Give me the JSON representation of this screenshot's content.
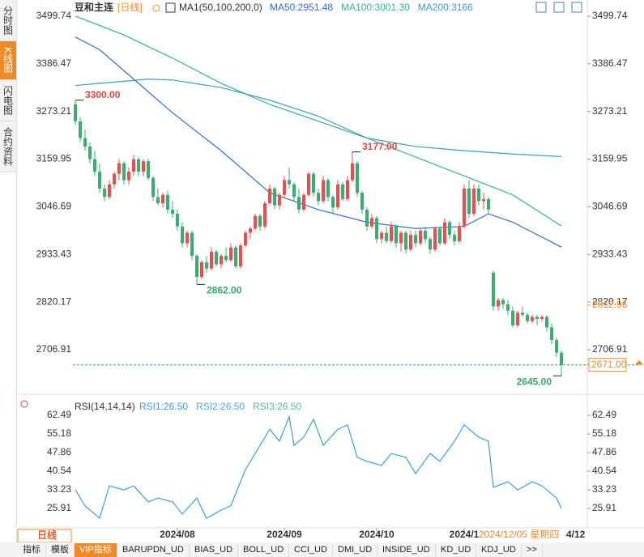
{
  "ui": {
    "tabs_left": [
      "分时图",
      "K线图",
      "闪电图",
      "合约资料"
    ],
    "symbol": "豆和主连",
    "period": "[日线]",
    "period_button": "日线",
    "crosshair_date": "2024/12/05 星期四",
    "crosshair_tail": "4/12",
    "bottom_tabs": [
      "指标",
      "模板",
      "VIP指标",
      "BARUPDN_UD",
      "BIAS_UD",
      "BOLL_UD",
      "CCI_UD",
      "DMI_UD",
      "INSIDE_UD",
      "KD_UD",
      "KDJ_UD",
      ">>"
    ]
  },
  "chart_data": [
    {
      "type": "candlestick",
      "title": "MA1(50,100,200,0)",
      "up_color": "#ef4b4b",
      "down_color": "#35b06e",
      "ylim": [
        2605,
        3515
      ],
      "yticks": [
        3499.74,
        3386.47,
        3273.21,
        3159.95,
        3046.69,
        2933.43,
        2820.17,
        2706.91
      ],
      "xlim": [
        0,
        100
      ],
      "xticks": [
        {
          "value": 21,
          "label": "2024/08"
        },
        {
          "value": 43,
          "label": "2024/09"
        },
        {
          "value": 62,
          "label": "2024/10"
        },
        {
          "value": 80,
          "label": "2024/1"
        }
      ],
      "ohlc": [
        [
          3290,
          3300,
          3240,
          3250
        ],
        [
          3250,
          3260,
          3200,
          3210
        ],
        [
          3210,
          3230,
          3180,
          3190
        ],
        [
          3190,
          3200,
          3150,
          3160
        ],
        [
          3160,
          3180,
          3120,
          3130
        ],
        [
          3130,
          3150,
          3080,
          3090
        ],
        [
          3090,
          3100,
          3060,
          3070
        ],
        [
          3070,
          3110,
          3065,
          3100
        ],
        [
          3100,
          3130,
          3090,
          3125
        ],
        [
          3125,
          3160,
          3110,
          3150
        ],
        [
          3150,
          3155,
          3100,
          3110
        ],
        [
          3110,
          3140,
          3100,
          3130
        ],
        [
          3130,
          3170,
          3120,
          3160
        ],
        [
          3160,
          3165,
          3120,
          3130
        ],
        [
          3130,
          3160,
          3120,
          3155
        ],
        [
          3155,
          3160,
          3110,
          3115
        ],
        [
          3115,
          3120,
          3060,
          3070
        ],
        [
          3070,
          3090,
          3050,
          3055
        ],
        [
          3055,
          3080,
          3045,
          3075
        ],
        [
          3075,
          3085,
          3030,
          3040
        ],
        [
          3040,
          3060,
          3020,
          3030
        ],
        [
          3030,
          3040,
          2990,
          3000
        ],
        [
          3000,
          3010,
          2950,
          2960
        ],
        [
          2960,
          2990,
          2950,
          2985
        ],
        [
          2985,
          2990,
          2920,
          2930
        ],
        [
          2930,
          2935,
          2862,
          2880
        ],
        [
          2880,
          2920,
          2875,
          2915
        ],
        [
          2915,
          2930,
          2890,
          2900
        ],
        [
          2900,
          2950,
          2895,
          2940
        ],
        [
          2940,
          2945,
          2905,
          2910
        ],
        [
          2910,
          2935,
          2900,
          2930
        ],
        [
          2930,
          2950,
          2915,
          2920
        ],
        [
          2920,
          2960,
          2915,
          2950
        ],
        [
          2950,
          2955,
          2900,
          2905
        ],
        [
          2905,
          2960,
          2900,
          2955
        ],
        [
          2955,
          2990,
          2950,
          2985
        ],
        [
          2985,
          3000,
          2970,
          2995
        ],
        [
          2995,
          3030,
          2990,
          3025
        ],
        [
          3025,
          3030,
          2990,
          3000
        ],
        [
          3000,
          3060,
          2995,
          3055
        ],
        [
          3055,
          3100,
          3050,
          3090
        ],
        [
          3090,
          3095,
          3040,
          3050
        ],
        [
          3050,
          3080,
          3040,
          3075
        ],
        [
          3075,
          3120,
          3070,
          3110
        ],
        [
          3110,
          3140,
          3090,
          3100
        ],
        [
          3100,
          3105,
          3060,
          3070
        ],
        [
          3070,
          3090,
          3030,
          3040
        ],
        [
          3040,
          3080,
          3035,
          3075
        ],
        [
          3075,
          3130,
          3070,
          3125
        ],
        [
          3125,
          3130,
          3070,
          3080
        ],
        [
          3080,
          3090,
          3050,
          3060
        ],
        [
          3060,
          3120,
          3055,
          3110
        ],
        [
          3110,
          3115,
          3060,
          3070
        ],
        [
          3070,
          3075,
          3030,
          3045
        ],
        [
          3045,
          3110,
          3040,
          3100
        ],
        [
          3100,
          3105,
          3060,
          3065
        ],
        [
          3065,
          3120,
          3060,
          3110
        ],
        [
          3110,
          3177,
          3105,
          3150
        ],
        [
          3150,
          3155,
          3070,
          3080
        ],
        [
          3080,
          3085,
          3030,
          3040
        ],
        [
          3040,
          3045,
          2990,
          3000
        ],
        [
          3000,
          3030,
          2995,
          3020
        ],
        [
          3020,
          3025,
          2960,
          2970
        ],
        [
          2970,
          2990,
          2960,
          2985
        ],
        [
          2985,
          3000,
          2960,
          2965
        ],
        [
          2965,
          3010,
          2960,
          3000
        ],
        [
          3000,
          3005,
          2950,
          2960
        ],
        [
          2960,
          2990,
          2940,
          2985
        ],
        [
          2985,
          2990,
          2935,
          2945
        ],
        [
          2945,
          2990,
          2940,
          2980
        ],
        [
          2980,
          2990,
          2950,
          2960
        ],
        [
          2960,
          2995,
          2955,
          2990
        ],
        [
          2990,
          3000,
          2960,
          2970
        ],
        [
          2970,
          2975,
          2935,
          2945
        ],
        [
          2945,
          3000,
          2940,
          2995
        ],
        [
          2995,
          3000,
          2955,
          2960
        ],
        [
          2960,
          3020,
          2955,
          3010
        ],
        [
          3010,
          3015,
          2970,
          2980
        ],
        [
          2980,
          2990,
          2955,
          2965
        ],
        [
          2965,
          3010,
          2960,
          3000
        ],
        [
          3000,
          3100,
          2995,
          3090
        ],
        [
          3090,
          3110,
          3020,
          3030
        ],
        [
          3030,
          3100,
          3025,
          3090
        ],
        [
          3090,
          3100,
          3050,
          3060
        ],
        [
          3060,
          3080,
          3040,
          3065
        ],
        [
          3065,
          3070,
          3030,
          3040
        ],
        [
          2890,
          2895,
          2800,
          2810
        ],
        [
          2810,
          2830,
          2800,
          2825
        ],
        [
          2825,
          2830,
          2805,
          2815
        ],
        [
          2815,
          2825,
          2790,
          2800
        ],
        [
          2800,
          2810,
          2760,
          2765
        ],
        [
          2765,
          2800,
          2760,
          2795
        ],
        [
          2795,
          2810,
          2785,
          2790
        ],
        [
          2790,
          2795,
          2770,
          2775
        ],
        [
          2775,
          2790,
          2770,
          2785
        ],
        [
          2785,
          2790,
          2765,
          2780
        ],
        [
          2780,
          2790,
          2775,
          2785
        ],
        [
          2785,
          2790,
          2750,
          2760
        ],
        [
          2760,
          2770,
          2720,
          2730
        ],
        [
          2730,
          2735,
          2690,
          2700
        ],
        [
          2700,
          2705,
          2645,
          2671
        ]
      ],
      "series": [
        {
          "name": "MA50:2951.48",
          "color": "#2f6fd0",
          "x": [
            0,
            5,
            10,
            20,
            30,
            40,
            50,
            60,
            70,
            80,
            85,
            90,
            100
          ],
          "values": [
            3450,
            3420,
            3370,
            3270,
            3180,
            3080,
            3040,
            3010,
            2995,
            3000,
            3030,
            3010,
            2951
          ]
        },
        {
          "name": "MA100:3001.30",
          "color": "#2fb39a",
          "x": [
            0,
            10,
            20,
            30,
            40,
            50,
            60,
            70,
            80,
            90,
            100
          ],
          "values": [
            3500,
            3455,
            3400,
            3340,
            3290,
            3250,
            3210,
            3165,
            3120,
            3075,
            3001
          ]
        },
        {
          "name": "MA200:3166",
          "color": "#3a9fbf",
          "x": [
            0,
            10,
            15,
            20,
            30,
            40,
            50,
            60,
            70,
            80,
            90,
            100
          ],
          "values": [
            3335,
            3345,
            3350,
            3348,
            3330,
            3300,
            3262,
            3210,
            3190,
            3180,
            3172,
            3166
          ]
        }
      ],
      "annotations": [
        {
          "text": "3300.00",
          "x": 0,
          "value": 3300,
          "color": "#e04444"
        },
        {
          "text": "2862.00",
          "x": 25,
          "value": 2862,
          "color": "#35a86a"
        },
        {
          "text": "3177.00",
          "x": 57,
          "value": 3177,
          "color": "#e04444"
        },
        {
          "text": "2645.00",
          "x": 100,
          "value": 2645,
          "color": "#35a86a"
        }
      ],
      "last_price": {
        "value": 2671,
        "label": "2671.00"
      },
      "mark_price": 2812.96
    },
    {
      "type": "line",
      "title": "RSI(14,14,14)",
      "ylim": [
        18.3,
        68.2
      ],
      "yticks": [
        62.49,
        55.18,
        47.86,
        40.54,
        33.23,
        25.91
      ],
      "xlim": [
        0,
        100
      ],
      "series": [
        {
          "name": "RSI1:26.50",
          "color": "#3a9fe0",
          "x": [
            0,
            2,
            5,
            7,
            10,
            12,
            15,
            17,
            20,
            22,
            25,
            27,
            30,
            32,
            35,
            37,
            40,
            42,
            44,
            45,
            47,
            49,
            51,
            54,
            56,
            58,
            60,
            63,
            65,
            68,
            70,
            73,
            75,
            78,
            80,
            83,
            85,
            86,
            89,
            91,
            94,
            96,
            99,
            100
          ],
          "values": [
            33.2,
            26.9,
            22.1,
            34.8,
            33.2,
            34.8,
            28.5,
            30,
            28.5,
            23.7,
            30,
            22,
            25.3,
            27,
            41.2,
            47.5,
            57,
            52.3,
            61.9,
            50.7,
            53.9,
            60.9,
            50.7,
            57,
            58.7,
            46,
            44.4,
            42.8,
            47.5,
            46,
            39.6,
            47.5,
            44.4,
            52.3,
            58.7,
            53.9,
            52.3,
            34.2,
            36.4,
            33.2,
            36.4,
            34.8,
            30,
            25.9
          ]
        }
      ],
      "labels": [
        {
          "text": "RSI2:26.50",
          "color": "#4aaecc"
        },
        {
          "text": "RSI3:26.50",
          "color": "#5bb8a0"
        }
      ]
    }
  ]
}
